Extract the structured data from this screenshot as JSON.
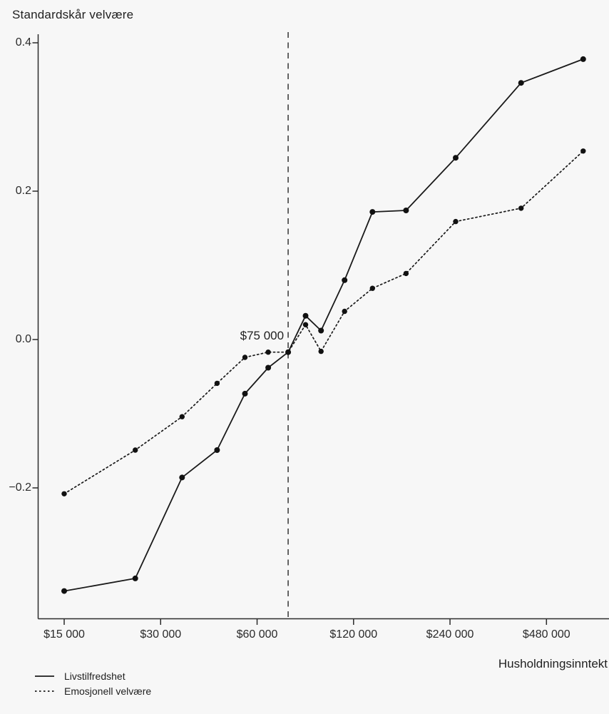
{
  "page": {
    "background": "#f7f7f7"
  },
  "chart_data": {
    "type": "line",
    "title": "Standardskår velvære",
    "xlabel": "Husholdningsinntekt",
    "ylabel": "Standardskår velvære",
    "x_scale": "log2",
    "x": [
      15000,
      25000,
      35000,
      45000,
      55000,
      65000,
      75000,
      85000,
      95000,
      112500,
      137500,
      175000,
      250000,
      400000,
      625000
    ],
    "series": [
      {
        "name": "Livstilfredshet",
        "style": "solid",
        "values": [
          -0.339,
          -0.322,
          -0.186,
          -0.149,
          -0.073,
          -0.038,
          -0.017,
          0.032,
          0.012,
          0.08,
          0.172,
          0.174,
          0.245,
          0.346,
          0.378
        ]
      },
      {
        "name": "Emosjonell velvære",
        "style": "dotted",
        "values": [
          -0.208,
          -0.149,
          -0.104,
          -0.059,
          -0.024,
          -0.017,
          -0.017,
          0.02,
          -0.016,
          0.038,
          0.069,
          0.089,
          0.159,
          0.177,
          0.254
        ]
      }
    ],
    "x_ticks": [
      {
        "value": 15000,
        "label": "$15 000"
      },
      {
        "value": 30000,
        "label": "$30 000"
      },
      {
        "value": 60000,
        "label": "$60 000"
      },
      {
        "value": 120000,
        "label": "$120 000"
      },
      {
        "value": 240000,
        "label": "$240 000"
      },
      {
        "value": 480000,
        "label": "$480 000"
      }
    ],
    "y_ticks": [
      {
        "value": 0.4,
        "label": "0.4"
      },
      {
        "value": 0.2,
        "label": "0.2"
      },
      {
        "value": 0.0,
        "label": "0.0"
      },
      {
        "value": -0.2,
        "label": "−0.2"
      }
    ],
    "ylim": [
      -0.38,
      0.42
    ],
    "grid": false,
    "reference_line_x": 75000,
    "annotation": {
      "label": "$75 000",
      "x": 75000
    },
    "legend": [
      {
        "label": "Livstilfredshet",
        "style": "solid"
      },
      {
        "label": "Emosjonell velvære",
        "style": "dotted"
      }
    ],
    "legend_position": "bottom-left",
    "line_color": "#1a1a1a",
    "axis_color": "#2b2b2b",
    "background_color": "#f7f7f7"
  }
}
